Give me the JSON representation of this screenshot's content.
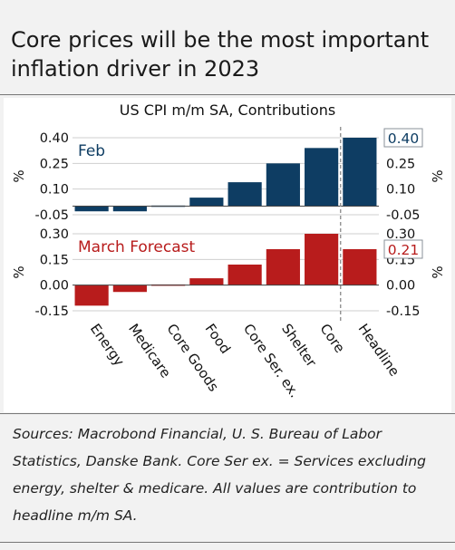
{
  "title": "Core prices will be the most important inflation driver in 2023",
  "subtitle": "US CPI m/m SA, Contributions",
  "source": "Sources: Macrobond Financial, U. S. Bureau of Labor Statistics, Danske Bank. Core Ser ex. = Services excluding energy, shelter & medicare. All values are contribution to headline m/m SA.",
  "chart_data": [
    {
      "type": "bar",
      "label": "Feb",
      "color": "#0e3d63",
      "categories": [
        "Energy",
        "Medicare",
        "Core Goods",
        "Food",
        "Core Ser. ex.",
        "Shelter",
        "Core",
        "Headline"
      ],
      "values": [
        -0.03,
        -0.03,
        0.0,
        0.05,
        0.14,
        0.25,
        0.34,
        0.4
      ],
      "ylim": [
        -0.05,
        0.4
      ],
      "yticks": [
        "0.40",
        "0.25",
        "0.10",
        "-0.05"
      ],
      "ylabel": "%",
      "value_label": "0.40"
    },
    {
      "type": "bar",
      "label": "March Forecast",
      "color": "#b81c1c",
      "categories": [
        "Energy",
        "Medicare",
        "Core Goods",
        "Food",
        "Core Ser. ex.",
        "Shelter",
        "Core",
        "Headline"
      ],
      "values": [
        -0.12,
        -0.04,
        0.0,
        0.04,
        0.12,
        0.21,
        0.3,
        0.21
      ],
      "ylim": [
        -0.15,
        0.3
      ],
      "yticks": [
        "0.30",
        "0.15",
        "0.00",
        "-0.15"
      ],
      "ylabel": "%",
      "value_label": "0.21"
    }
  ]
}
